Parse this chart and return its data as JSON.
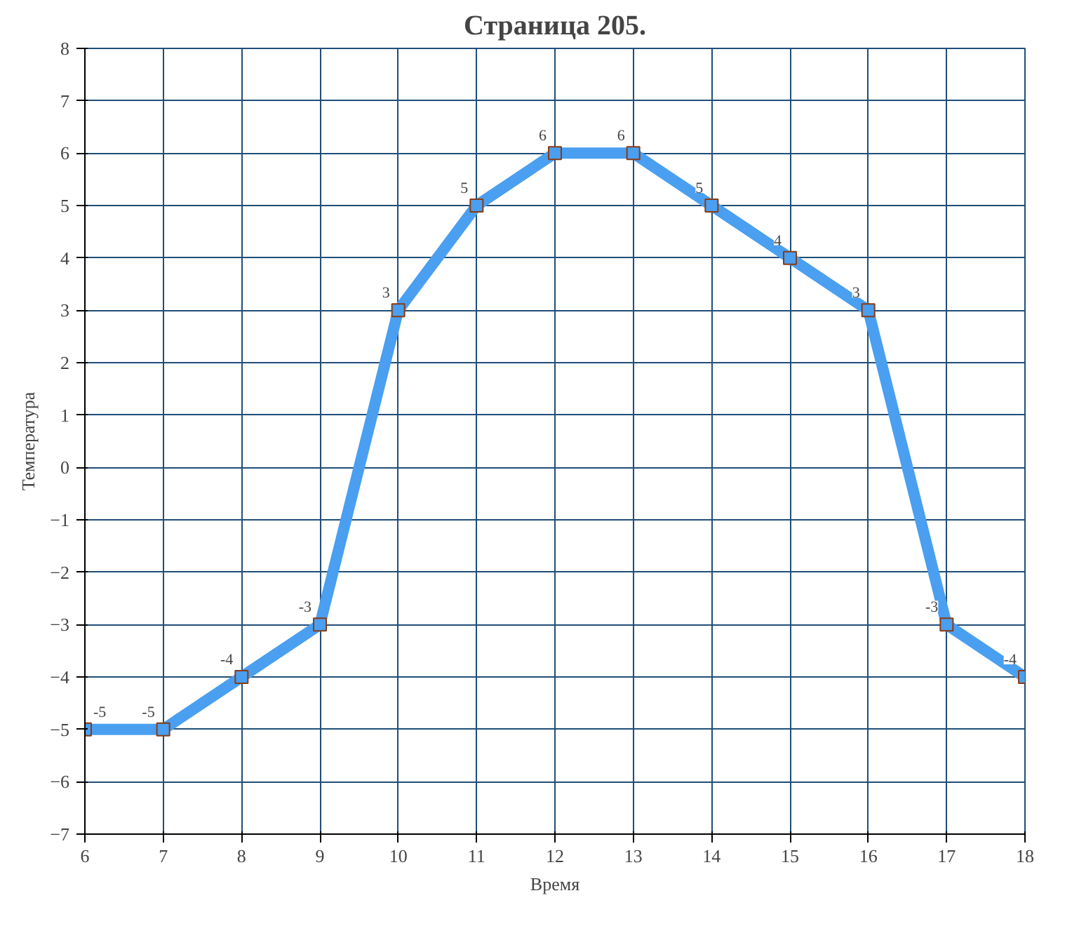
{
  "chart_data": {
    "type": "line",
    "title": "Страница 205.",
    "xlabel": "Время",
    "ylabel": "Температура",
    "x": [
      6,
      7,
      8,
      9,
      10,
      11,
      12,
      13,
      14,
      15,
      16,
      17,
      18
    ],
    "series": [
      {
        "color": "#4a9ff0",
        "values": [
          -5,
          -5,
          -4,
          -3,
          3,
          5,
          6,
          6,
          5,
          4,
          3,
          -3,
          -4
        ]
      }
    ],
    "xlim": [
      6,
      18
    ],
    "xticks": [
      6,
      7,
      8,
      9,
      10,
      11,
      12,
      13,
      14,
      15,
      16,
      17,
      18
    ],
    "ylim": [
      -7,
      8
    ],
    "yticks": [
      -7,
      -6,
      -5,
      -4,
      -3,
      -2,
      -1,
      0,
      1,
      2,
      3,
      4,
      5,
      6,
      7,
      8
    ],
    "grid": true,
    "marker": "square",
    "line_style": "solid",
    "data_labels": true
  }
}
